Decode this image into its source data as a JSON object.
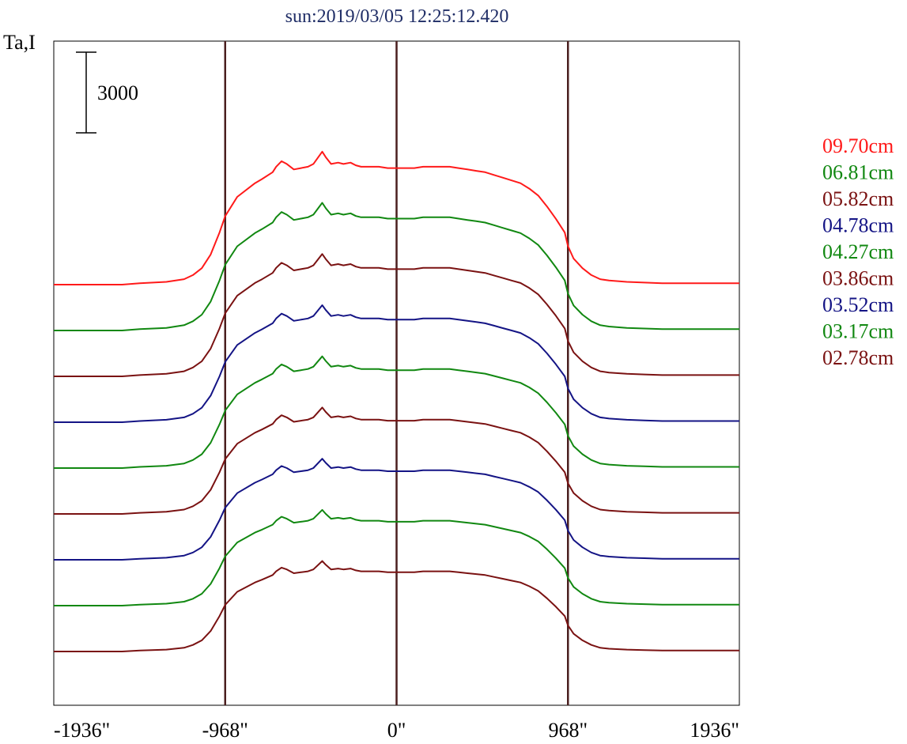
{
  "chart_data": {
    "type": "line",
    "title": "sun:2019/03/05 12:25:12.420",
    "ylabel": "Ta,I",
    "scale_bar": {
      "label": "3000",
      "value": 3000
    },
    "xlim": [
      -1936,
      1936
    ],
    "x_ticks": [
      {
        "value": -1936,
        "label": "-1936\""
      },
      {
        "value": -968,
        "label": "-968\""
      },
      {
        "value": 0,
        "label": "0\""
      },
      {
        "value": 968,
        "label": "968\""
      },
      {
        "value": 1936,
        "label": "1936\""
      }
    ],
    "vertical_markers": [
      -968,
      0,
      968
    ],
    "marker_color": "#4a1f1f",
    "profile": {
      "x": [
        -1936,
        -1550,
        -1450,
        -1300,
        -1200,
        -1150,
        -1100,
        -1050,
        -1000,
        -968,
        -900,
        -800,
        -760,
        -700,
        -680,
        -650,
        -620,
        -580,
        -540,
        -500,
        -470,
        -420,
        -400,
        -370,
        -330,
        -300,
        -260,
        -230,
        -200,
        -150,
        -100,
        -50,
        0,
        50,
        100,
        150,
        200,
        250,
        300,
        350,
        400,
        450,
        500,
        550,
        600,
        650,
        700,
        750,
        800,
        850,
        900,
        950,
        968,
        1000,
        1050,
        1100,
        1150,
        1200,
        1300,
        1400,
        1500,
        1600,
        1700,
        1936
      ],
      "y": [
        0,
        0,
        0.01,
        0.02,
        0.04,
        0.07,
        0.12,
        0.22,
        0.38,
        0.5,
        0.64,
        0.74,
        0.77,
        0.82,
        0.86,
        0.9,
        0.88,
        0.84,
        0.85,
        0.86,
        0.88,
        0.97,
        0.93,
        0.88,
        0.89,
        0.88,
        0.89,
        0.87,
        0.86,
        0.86,
        0.86,
        0.85,
        0.85,
        0.85,
        0.85,
        0.86,
        0.86,
        0.86,
        0.86,
        0.85,
        0.84,
        0.83,
        0.82,
        0.8,
        0.78,
        0.76,
        0.74,
        0.7,
        0.65,
        0.57,
        0.48,
        0.38,
        0.28,
        0.19,
        0.12,
        0.07,
        0.04,
        0.03,
        0.02,
        0.015,
        0.01,
        0.01,
        0.01,
        0.01
      ],
      "amplitude_in_scale_bars": 1.7
    },
    "series": [
      {
        "name": "09.70cm",
        "color": "#ff1a1a",
        "baseline": 0
      },
      {
        "name": "06.81cm",
        "color": "#118811",
        "baseline": 0
      },
      {
        "name": "05.82cm",
        "color": "#7a1212",
        "baseline": 0
      },
      {
        "name": "04.78cm",
        "color": "#141485",
        "baseline": 0
      },
      {
        "name": "04.27cm",
        "color": "#118811",
        "baseline": 0
      },
      {
        "name": "03.86cm",
        "color": "#7a1212",
        "baseline": 0
      },
      {
        "name": "03.52cm",
        "color": "#141485",
        "baseline": 0
      },
      {
        "name": "03.17cm",
        "color": "#118811",
        "baseline": 0
      },
      {
        "name": "02.78cm",
        "color": "#7a1212",
        "baseline": 0
      }
    ],
    "legend_position": "right",
    "grid": false
  }
}
